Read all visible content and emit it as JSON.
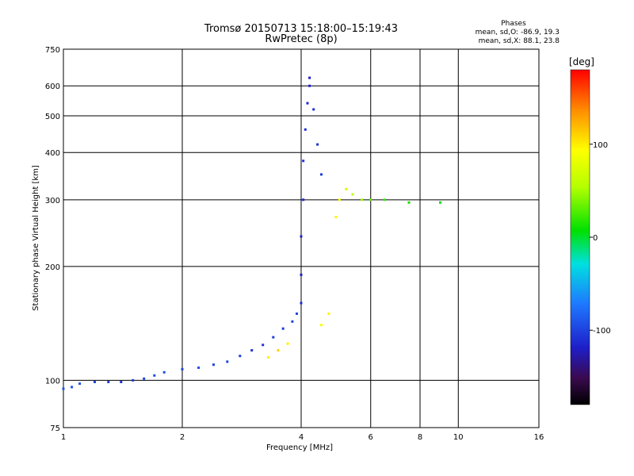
{
  "chart_data": {
    "type": "scatter",
    "title": "Tromsø 20150713 15:18:00–15:19:43",
    "subtitle": "RwPretec (8p)",
    "xlabel": "Frequency [MHz]",
    "ylabel": "Stationary phase Virtual Height [km]",
    "x_scale": "log",
    "y_scale": "log",
    "xlim": [
      1,
      16
    ],
    "ylim": [
      75,
      750
    ],
    "x_ticks": [
      1,
      2,
      4,
      6,
      8,
      10,
      16
    ],
    "x_tick_labels": [
      "1",
      "2",
      "4",
      "6",
      "8",
      "10",
      "16"
    ],
    "y_ticks": [
      75,
      100,
      200,
      300,
      400,
      500,
      600,
      750
    ],
    "y_tick_labels": [
      "75",
      "100",
      "200",
      "300",
      "400",
      "500",
      "600",
      "750"
    ],
    "grid": true,
    "stats": {
      "header": "Phases",
      "line_o": "mean, sd,O: -86.9, 19.3",
      "line_x": "mean, sd,X:  88.1, 23.8"
    },
    "colorbar": {
      "label": "[deg]",
      "range": [
        -180,
        180
      ],
      "ticks": [
        100,
        0,
        -100
      ],
      "tick_labels": [
        "100",
        "0",
        "-100"
      ]
    },
    "trace_points": [
      {
        "f": 1.0,
        "h": 95,
        "phase": -95
      },
      {
        "f": 1.05,
        "h": 96,
        "phase": -95
      },
      {
        "f": 1.1,
        "h": 98,
        "phase": -95
      },
      {
        "f": 1.2,
        "h": 99,
        "phase": -100
      },
      {
        "f": 1.3,
        "h": 99,
        "phase": -105
      },
      {
        "f": 1.4,
        "h": 99,
        "phase": -110
      },
      {
        "f": 1.5,
        "h": 100,
        "phase": -105
      },
      {
        "f": 1.6,
        "h": 101,
        "phase": -100
      },
      {
        "f": 1.7,
        "h": 103,
        "phase": -95
      },
      {
        "f": 1.8,
        "h": 105,
        "phase": -95
      },
      {
        "f": 2.0,
        "h": 107,
        "phase": -100
      },
      {
        "f": 2.2,
        "h": 108,
        "phase": -95
      },
      {
        "f": 2.4,
        "h": 110,
        "phase": -100
      },
      {
        "f": 2.6,
        "h": 112,
        "phase": -100
      },
      {
        "f": 2.8,
        "h": 116,
        "phase": -105
      },
      {
        "f": 3.0,
        "h": 120,
        "phase": -110
      },
      {
        "f": 3.2,
        "h": 124,
        "phase": -110
      },
      {
        "f": 3.4,
        "h": 130,
        "phase": -105
      },
      {
        "f": 3.6,
        "h": 137,
        "phase": -105
      },
      {
        "f": 3.8,
        "h": 143,
        "phase": -100
      },
      {
        "f": 3.9,
        "h": 150,
        "phase": -100
      },
      {
        "f": 4.0,
        "h": 160,
        "phase": -115
      },
      {
        "f": 4.0,
        "h": 190,
        "phase": -120
      },
      {
        "f": 4.0,
        "h": 240,
        "phase": -120
      },
      {
        "f": 4.05,
        "h": 300,
        "phase": -115
      },
      {
        "f": 4.05,
        "h": 380,
        "phase": -110
      },
      {
        "f": 4.1,
        "h": 460,
        "phase": -110
      },
      {
        "f": 4.15,
        "h": 540,
        "phase": -115
      },
      {
        "f": 4.2,
        "h": 600,
        "phase": -120
      },
      {
        "f": 4.2,
        "h": 630,
        "phase": -120
      },
      {
        "f": 4.3,
        "h": 520,
        "phase": -110
      },
      {
        "f": 4.4,
        "h": 420,
        "phase": -110
      },
      {
        "f": 4.5,
        "h": 350,
        "phase": -105
      },
      {
        "f": 3.3,
        "h": 115,
        "phase": 100
      },
      {
        "f": 3.5,
        "h": 120,
        "phase": 110
      },
      {
        "f": 3.7,
        "h": 125,
        "phase": 100
      },
      {
        "f": 4.5,
        "h": 140,
        "phase": 90
      },
      {
        "f": 4.7,
        "h": 150,
        "phase": 100
      },
      {
        "f": 4.9,
        "h": 270,
        "phase": 100
      },
      {
        "f": 5.0,
        "h": 300,
        "phase": 90
      },
      {
        "f": 5.2,
        "h": 320,
        "phase": 70
      },
      {
        "f": 5.4,
        "h": 310,
        "phase": 60
      },
      {
        "f": 5.7,
        "h": 300,
        "phase": 50
      },
      {
        "f": 6.0,
        "h": 300,
        "phase": 30
      },
      {
        "f": 6.5,
        "h": 300,
        "phase": 20
      },
      {
        "f": 7.5,
        "h": 295,
        "phase": 10
      },
      {
        "f": 9.0,
        "h": 295,
        "phase": 0
      }
    ]
  }
}
